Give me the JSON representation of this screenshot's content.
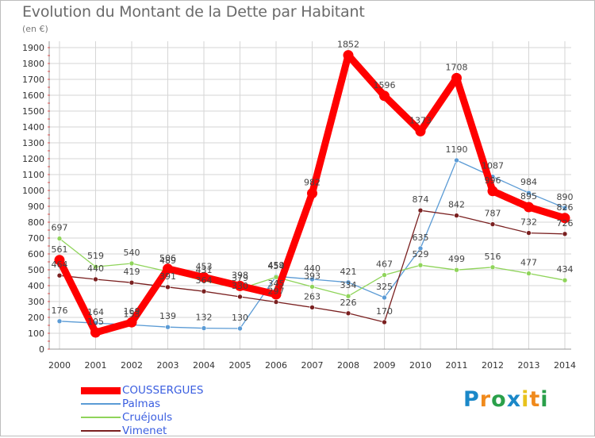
{
  "title": "Evolution du Montant de la Dette par Habitant",
  "subtitle": "(en €)",
  "logo": {
    "letters": [
      "P",
      "r",
      "o",
      "x",
      "i",
      "t",
      "i"
    ],
    "colors": [
      "#1b88c8",
      "#f08a1c",
      "#2aa04a",
      "#1b88c8",
      "#e8c21c",
      "#f08a1c",
      "#2aa04a"
    ]
  },
  "chart_data": {
    "type": "line",
    "categories": [
      "2000",
      "2001",
      "2002",
      "2003",
      "2004",
      "2005",
      "2006",
      "2007",
      "2008",
      "2009",
      "2010",
      "2011",
      "2012",
      "2013",
      "2014"
    ],
    "ylim": [
      0,
      1900
    ],
    "yticks": [
      0,
      100,
      200,
      300,
      400,
      500,
      600,
      700,
      800,
      900,
      1000,
      1100,
      1200,
      1300,
      1400,
      1500,
      1600,
      1700,
      1800,
      1900
    ],
    "series": [
      {
        "name": "COUSSERGUES",
        "color": "#ff0000",
        "values": [
          561,
          105,
          169,
          506,
          453,
          398,
          345,
          982,
          1852,
          1596,
          1373,
          1708,
          996,
          895,
          826
        ]
      },
      {
        "name": "Palmas",
        "color": "#5b9bd5",
        "values": [
          176,
          164,
          153,
          139,
          132,
          130,
          459,
          440,
          421,
          325,
          635,
          1190,
          1087,
          984,
          890
        ]
      },
      {
        "name": "Cruéjouls",
        "color": "#8fd45a",
        "values": [
          697,
          519,
          540,
          489,
          431,
          379,
          454,
          393,
          334,
          467,
          529,
          499,
          516,
          477,
          434
        ]
      },
      {
        "name": "Vimenet",
        "color": "#7a2020",
        "values": [
          464,
          440,
          419,
          391,
          364,
          330,
          297,
          263,
          226,
          170,
          874,
          842,
          787,
          732,
          726
        ]
      }
    ]
  }
}
